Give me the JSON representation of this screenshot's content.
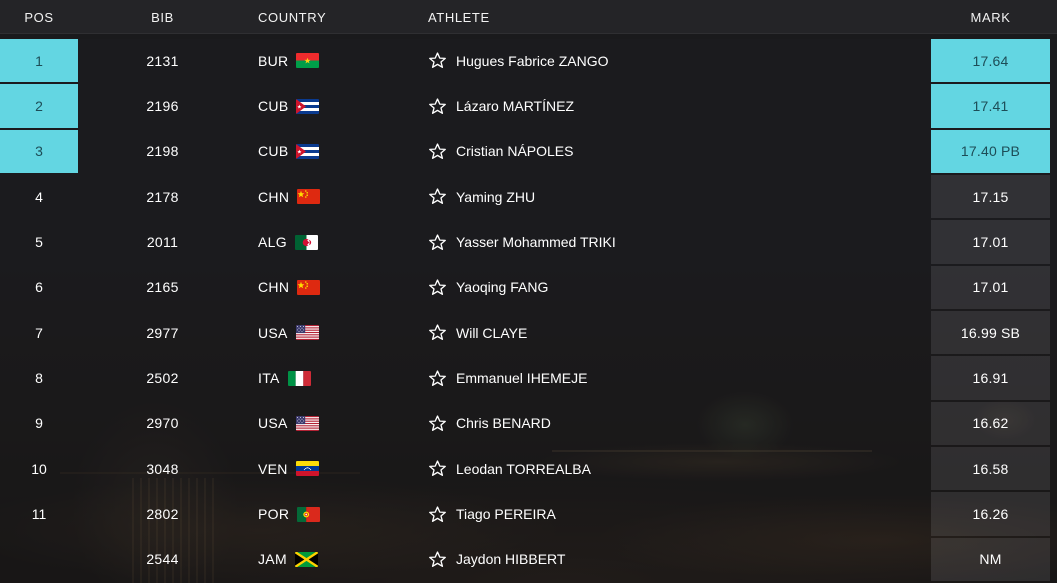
{
  "header": {
    "pos": "POS",
    "bib": "BIB",
    "country": "COUNTRY",
    "athlete": "ATHLETE",
    "mark": "MARK"
  },
  "colors": {
    "highlight": "#63d6e2",
    "highlight_text": "#1d4d57",
    "header_bg": "#242427",
    "row_text": "#ffffff"
  },
  "icons": {
    "athlete_star": "star-outline-icon"
  },
  "table": {
    "rows": [
      {
        "pos": "1",
        "bib": "2131",
        "country": "BUR",
        "flag": "flag-bur-icon",
        "athlete": "Hugues Fabrice ZANGO",
        "mark": "17.64",
        "highlighted": true
      },
      {
        "pos": "2",
        "bib": "2196",
        "country": "CUB",
        "flag": "flag-cub-icon",
        "athlete": "Lázaro MARTÍNEZ",
        "mark": "17.41",
        "highlighted": true
      },
      {
        "pos": "3",
        "bib": "2198",
        "country": "CUB",
        "flag": "flag-cub-icon",
        "athlete": "Cristian NÁPOLES",
        "mark": "17.40 PB",
        "highlighted": true
      },
      {
        "pos": "4",
        "bib": "2178",
        "country": "CHN",
        "flag": "flag-chn-icon",
        "athlete": "Yaming ZHU",
        "mark": "17.15",
        "highlighted": false
      },
      {
        "pos": "5",
        "bib": "2011",
        "country": "ALG",
        "flag": "flag-alg-icon",
        "athlete": "Yasser Mohammed TRIKI",
        "mark": "17.01",
        "highlighted": false
      },
      {
        "pos": "6",
        "bib": "2165",
        "country": "CHN",
        "flag": "flag-chn-icon",
        "athlete": "Yaoqing FANG",
        "mark": "17.01",
        "highlighted": false
      },
      {
        "pos": "7",
        "bib": "2977",
        "country": "USA",
        "flag": "flag-usa-icon",
        "athlete": "Will CLAYE",
        "mark": "16.99 SB",
        "highlighted": false
      },
      {
        "pos": "8",
        "bib": "2502",
        "country": "ITA",
        "flag": "flag-ita-icon",
        "athlete": "Emmanuel IHEMEJE",
        "mark": "16.91",
        "highlighted": false
      },
      {
        "pos": "9",
        "bib": "2970",
        "country": "USA",
        "flag": "flag-usa-icon",
        "athlete": "Chris BENARD",
        "mark": "16.62",
        "highlighted": false
      },
      {
        "pos": "10",
        "bib": "3048",
        "country": "VEN",
        "flag": "flag-ven-icon",
        "athlete": "Leodan TORREALBA",
        "mark": "16.58",
        "highlighted": false
      },
      {
        "pos": "11",
        "bib": "2802",
        "country": "POR",
        "flag": "flag-por-icon",
        "athlete": "Tiago PEREIRA",
        "mark": "16.26",
        "highlighted": false
      },
      {
        "pos": "",
        "bib": "2544",
        "country": "JAM",
        "flag": "flag-jam-icon",
        "athlete": "Jaydon HIBBERT",
        "mark": "NM",
        "highlighted": false
      }
    ]
  }
}
